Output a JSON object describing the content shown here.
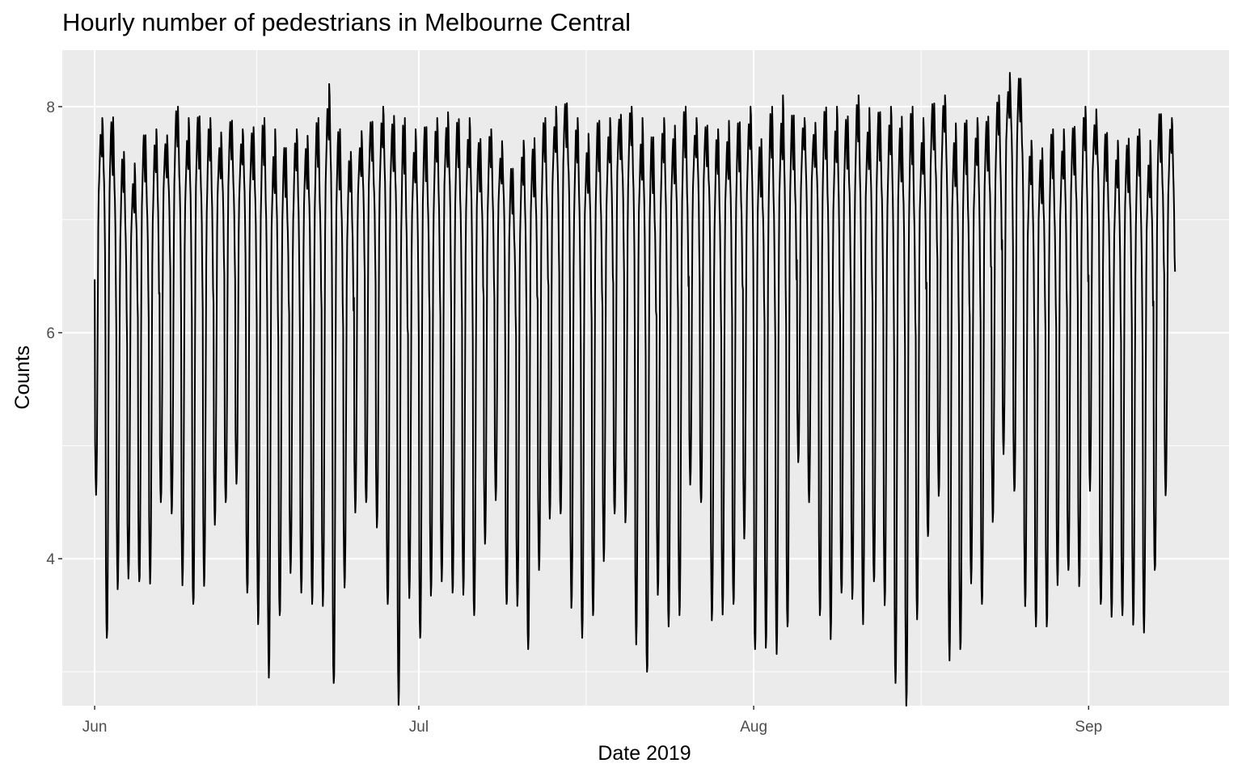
{
  "chart_data": {
    "type": "line",
    "title": "Hourly number of pedestrians in Melbourne Central",
    "xlabel": "Date 2019",
    "ylabel": "Counts",
    "xlim": [
      "2019-05-29",
      "2019-09-14"
    ],
    "ylim": [
      2.7,
      8.5
    ],
    "x_ticks": [
      {
        "date": "2019-06-01",
        "label": "Jun"
      },
      {
        "date": "2019-07-01",
        "label": "Jul"
      },
      {
        "date": "2019-08-01",
        "label": "Aug"
      },
      {
        "date": "2019-09-01",
        "label": "Sep"
      }
    ],
    "y_ticks": [
      4,
      6,
      8
    ],
    "grid": true,
    "background": "#ebebeb",
    "line_color": "#000000",
    "series": [
      {
        "x": [
          "2019-06-01",
          "2019-06-02",
          "2019-06-03",
          "2019-06-04",
          "2019-06-05",
          "2019-06-06",
          "2019-06-07",
          "2019-06-08",
          "2019-06-09",
          "2019-06-10",
          "2019-06-11",
          "2019-06-12",
          "2019-06-13",
          "2019-06-14",
          "2019-06-15",
          "2019-06-16",
          "2019-06-17",
          "2019-06-18",
          "2019-06-19",
          "2019-06-20",
          "2019-06-21",
          "2019-06-22",
          "2019-06-23",
          "2019-06-24",
          "2019-06-25",
          "2019-06-26",
          "2019-06-27",
          "2019-06-28",
          "2019-06-29",
          "2019-06-30",
          "2019-07-01",
          "2019-07-02",
          "2019-07-03",
          "2019-07-04",
          "2019-07-05",
          "2019-07-06",
          "2019-07-07",
          "2019-07-08",
          "2019-07-09",
          "2019-07-10",
          "2019-07-11",
          "2019-07-12",
          "2019-07-13",
          "2019-07-14",
          "2019-07-15",
          "2019-07-16",
          "2019-07-17",
          "2019-07-18",
          "2019-07-19",
          "2019-07-20",
          "2019-07-21",
          "2019-07-22",
          "2019-07-23",
          "2019-07-24",
          "2019-07-25",
          "2019-07-26",
          "2019-07-27",
          "2019-07-28",
          "2019-07-29",
          "2019-07-30",
          "2019-07-31",
          "2019-08-01",
          "2019-08-02",
          "2019-08-03",
          "2019-08-04",
          "2019-08-05",
          "2019-08-06",
          "2019-08-07",
          "2019-08-08",
          "2019-08-09",
          "2019-08-10",
          "2019-08-11",
          "2019-08-12",
          "2019-08-13",
          "2019-08-14",
          "2019-08-15",
          "2019-08-16",
          "2019-08-17",
          "2019-08-18",
          "2019-08-19",
          "2019-08-20",
          "2019-08-21",
          "2019-08-22",
          "2019-08-23",
          "2019-08-24",
          "2019-08-25",
          "2019-08-26",
          "2019-08-27",
          "2019-08-28",
          "2019-08-29",
          "2019-08-30",
          "2019-08-31",
          "2019-09-01",
          "2019-09-02",
          "2019-09-03",
          "2019-09-04",
          "2019-09-05",
          "2019-09-06",
          "2019-09-07",
          "2019-09-08"
        ],
        "min": [
          4.5,
          3.3,
          3.7,
          3.8,
          3.8,
          3.7,
          4.5,
          4.4,
          3.7,
          3.6,
          3.7,
          4.3,
          4.5,
          4.6,
          3.7,
          3.4,
          2.9,
          3.5,
          3.8,
          3.7,
          3.6,
          3.5,
          2.9,
          3.7,
          4.4,
          4.5,
          4.2,
          3.6,
          2.7,
          3.6,
          3.3,
          3.6,
          3.8,
          3.7,
          3.6,
          3.5,
          4.1,
          4.5,
          3.6,
          3.5,
          3.2,
          3.9,
          4.3,
          4.4,
          3.5,
          3.3,
          3.5,
          3.9,
          4.4,
          4.3,
          3.2,
          3.0,
          3.6,
          3.4,
          3.5,
          4.6,
          4.5,
          3.4,
          3.5,
          3.6,
          4.1,
          3.2,
          3.2,
          3.1,
          3.4,
          4.8,
          4.5,
          3.5,
          3.2,
          3.7,
          3.6,
          3.4,
          3.8,
          3.5,
          2.9,
          2.7,
          3.4,
          4.2,
          4.5,
          3.1,
          3.2,
          3.7,
          3.6,
          4.3,
          4.9,
          4.6,
          3.5,
          3.4,
          3.4,
          3.7,
          3.9,
          3.7,
          4.6,
          3.6,
          3.4,
          3.5,
          3.4,
          3.3,
          3.9,
          4.5
        ],
        "max": [
          7.9,
          8.0,
          7.6,
          7.5,
          7.8,
          7.8,
          7.8,
          8.0,
          7.9,
          8.0,
          7.9,
          7.8,
          7.9,
          7.8,
          7.9,
          7.9,
          7.8,
          7.7,
          7.8,
          7.8,
          7.9,
          8.2,
          7.9,
          7.6,
          7.8,
          7.9,
          8.0,
          8.0,
          7.9,
          7.8,
          7.9,
          7.9,
          8.0,
          7.9,
          7.9,
          7.8,
          7.8,
          7.7,
          7.5,
          7.7,
          7.8,
          7.9,
          8.0,
          8.1,
          7.9,
          7.8,
          7.9,
          7.9,
          8.0,
          8.0,
          7.9,
          7.8,
          7.9,
          7.9,
          8.0,
          7.9,
          7.9,
          7.8,
          7.9,
          7.9,
          8.0,
          7.8,
          8.0,
          8.1,
          8.0,
          7.9,
          7.9,
          8.0,
          8.0,
          8.0,
          8.1,
          8.0,
          8.0,
          8.0,
          8.0,
          8.0,
          7.9,
          8.1,
          8.1,
          7.9,
          7.9,
          7.9,
          8.0,
          8.1,
          8.3,
          8.3,
          7.7,
          7.7,
          7.8,
          7.8,
          7.9,
          8.0,
          8.0,
          7.8,
          7.7,
          7.8,
          7.8,
          7.7,
          8.0,
          7.9
        ]
      }
    ]
  }
}
